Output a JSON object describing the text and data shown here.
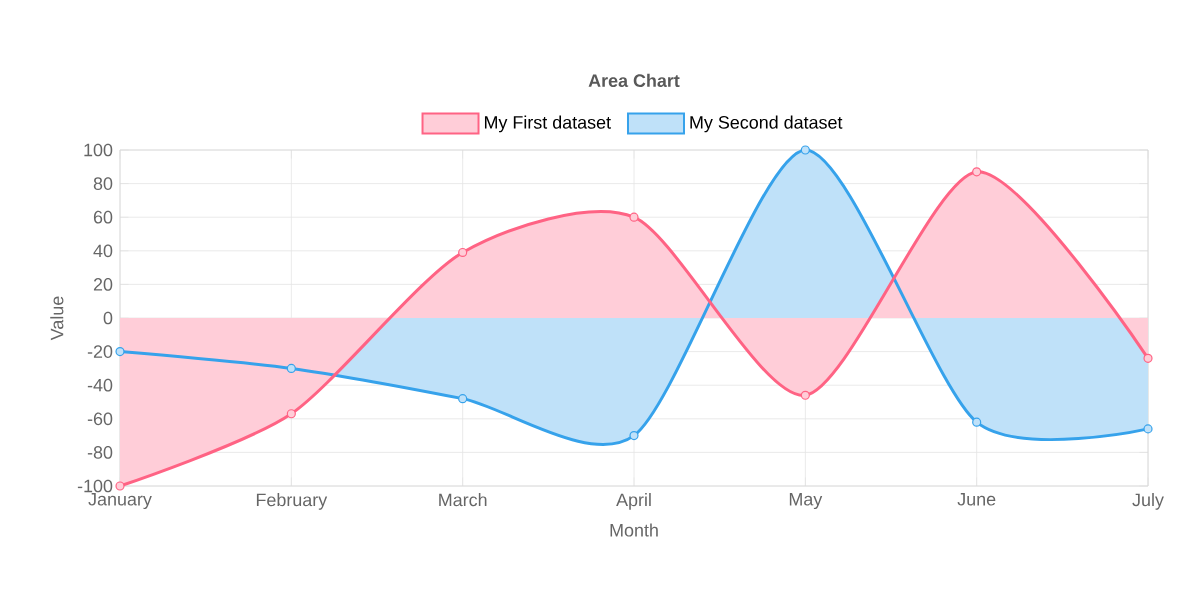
{
  "chart_data": {
    "type": "area",
    "title": "Area Chart",
    "xlabel": "Month",
    "ylabel": "Value",
    "categories": [
      "January",
      "February",
      "March",
      "April",
      "May",
      "June",
      "July"
    ],
    "series": [
      {
        "name": "My First dataset",
        "color": "#ff6384",
        "values": [
          -100,
          -57,
          39,
          60,
          -46,
          87,
          -24
        ]
      },
      {
        "name": "My Second dataset",
        "color": "#36a2eb",
        "values": [
          -20,
          -30,
          -48,
          -70,
          100,
          -62,
          -66
        ]
      }
    ],
    "ylim": [
      -100,
      100
    ],
    "yticks": [
      -100,
      -80,
      -60,
      -40,
      -20,
      0,
      20,
      40,
      60,
      80,
      100
    ],
    "grid": true,
    "legend": "top",
    "marker": "circle"
  }
}
